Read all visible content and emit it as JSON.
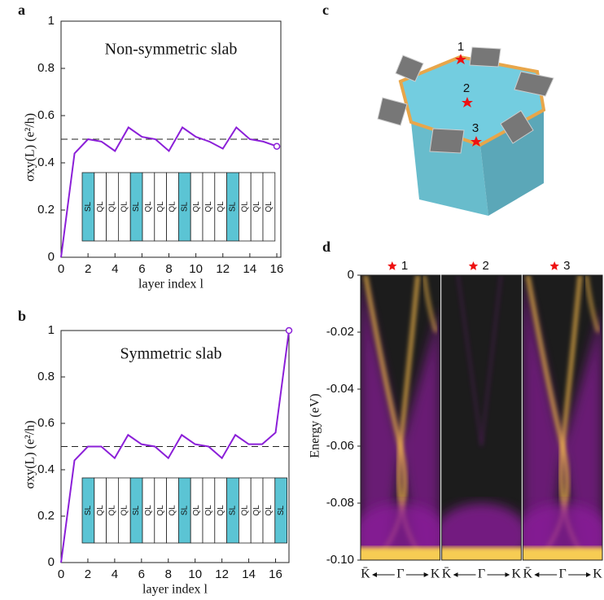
{
  "chart_data": [
    {
      "type": "line",
      "panel_label": "a",
      "title": "Non-symmetric slab",
      "xlabel": "layer index l",
      "ylabel": "σxy(L) (e²/h)",
      "x": [
        0,
        1,
        2,
        3,
        4,
        5,
        6,
        7,
        8,
        9,
        10,
        11,
        12,
        13,
        14,
        15,
        16
      ],
      "values": [
        0,
        0.44,
        0.5,
        0.49,
        0.45,
        0.55,
        0.51,
        0.5,
        0.45,
        0.55,
        0.51,
        0.49,
        0.46,
        0.55,
        0.5,
        0.49,
        0.47
      ],
      "color": "#8b1fd8",
      "ref_line": 0.5,
      "xlim": [
        0,
        16.3
      ],
      "ylim": [
        0,
        1
      ],
      "xticks": [
        0,
        2,
        4,
        6,
        8,
        10,
        12,
        14,
        16
      ],
      "yticks": [
        0,
        0.2,
        0.4,
        0.6,
        0.8,
        1
      ],
      "inset_layers": [
        {
          "label": "SL",
          "color": "#5bc4d4"
        },
        {
          "label": "QL",
          "color": "#ffffff"
        },
        {
          "label": "QL",
          "color": "#ffffff"
        },
        {
          "label": "QL",
          "color": "#ffffff"
        },
        {
          "label": "SL",
          "color": "#5bc4d4"
        },
        {
          "label": "QL",
          "color": "#ffffff"
        },
        {
          "label": "QL",
          "color": "#ffffff"
        },
        {
          "label": "QL",
          "color": "#ffffff"
        },
        {
          "label": "SL",
          "color": "#5bc4d4"
        },
        {
          "label": "QL",
          "color": "#ffffff"
        },
        {
          "label": "QL",
          "color": "#ffffff"
        },
        {
          "label": "QL",
          "color": "#ffffff"
        },
        {
          "label": "SL",
          "color": "#5bc4d4"
        },
        {
          "label": "QL",
          "color": "#ffffff"
        },
        {
          "label": "QL",
          "color": "#ffffff"
        },
        {
          "label": "QL",
          "color": "#ffffff"
        }
      ]
    },
    {
      "type": "line",
      "panel_label": "b",
      "title": "Symmetric slab",
      "xlabel": "layer index l",
      "ylabel": "σxy(L) (e²/h)",
      "x": [
        0,
        1,
        2,
        3,
        4,
        5,
        6,
        7,
        8,
        9,
        10,
        11,
        12,
        13,
        14,
        15,
        16,
        17
      ],
      "values": [
        0,
        0.44,
        0.5,
        0.5,
        0.45,
        0.55,
        0.51,
        0.5,
        0.45,
        0.55,
        0.51,
        0.5,
        0.45,
        0.55,
        0.51,
        0.51,
        0.56,
        1
      ],
      "color": "#8b1fd8",
      "ref_line": 0.5,
      "xlim": [
        0,
        17
      ],
      "ylim": [
        0,
        1
      ],
      "xticks": [
        0,
        2,
        4,
        6,
        8,
        10,
        12,
        14,
        16
      ],
      "yticks": [
        0,
        0.2,
        0.4,
        0.6,
        0.8,
        1
      ],
      "inset_layers": [
        {
          "label": "SL",
          "color": "#5bc4d4"
        },
        {
          "label": "QL",
          "color": "#ffffff"
        },
        {
          "label": "QL",
          "color": "#ffffff"
        },
        {
          "label": "QL",
          "color": "#ffffff"
        },
        {
          "label": "SL",
          "color": "#5bc4d4"
        },
        {
          "label": "QL",
          "color": "#ffffff"
        },
        {
          "label": "QL",
          "color": "#ffffff"
        },
        {
          "label": "QL",
          "color": "#ffffff"
        },
        {
          "label": "SL",
          "color": "#5bc4d4"
        },
        {
          "label": "QL",
          "color": "#ffffff"
        },
        {
          "label": "QL",
          "color": "#ffffff"
        },
        {
          "label": "QL",
          "color": "#ffffff"
        },
        {
          "label": "SL",
          "color": "#5bc4d4"
        },
        {
          "label": "QL",
          "color": "#ffffff"
        },
        {
          "label": "QL",
          "color": "#ffffff"
        },
        {
          "label": "QL",
          "color": "#ffffff"
        },
        {
          "label": "SL",
          "color": "#5bc4d4"
        }
      ]
    },
    {
      "type": "diagram",
      "panel_label": "c",
      "point_labels": [
        "1",
        "2",
        "3"
      ]
    },
    {
      "type": "spectral",
      "panel_label": "d",
      "ylabel": "Energy (eV)",
      "ylim": [
        -0.1,
        0
      ],
      "yticks": [
        0,
        -0.02,
        -0.04,
        -0.06,
        -0.08,
        {
          "value": -0.1,
          "label": "-0.10"
        }
      ],
      "panels": [
        {
          "title": "1"
        },
        {
          "title": "2"
        },
        {
          "title": "3"
        }
      ],
      "x_tick_labels": [
        "K̄",
        "Γ",
        "K"
      ]
    }
  ]
}
